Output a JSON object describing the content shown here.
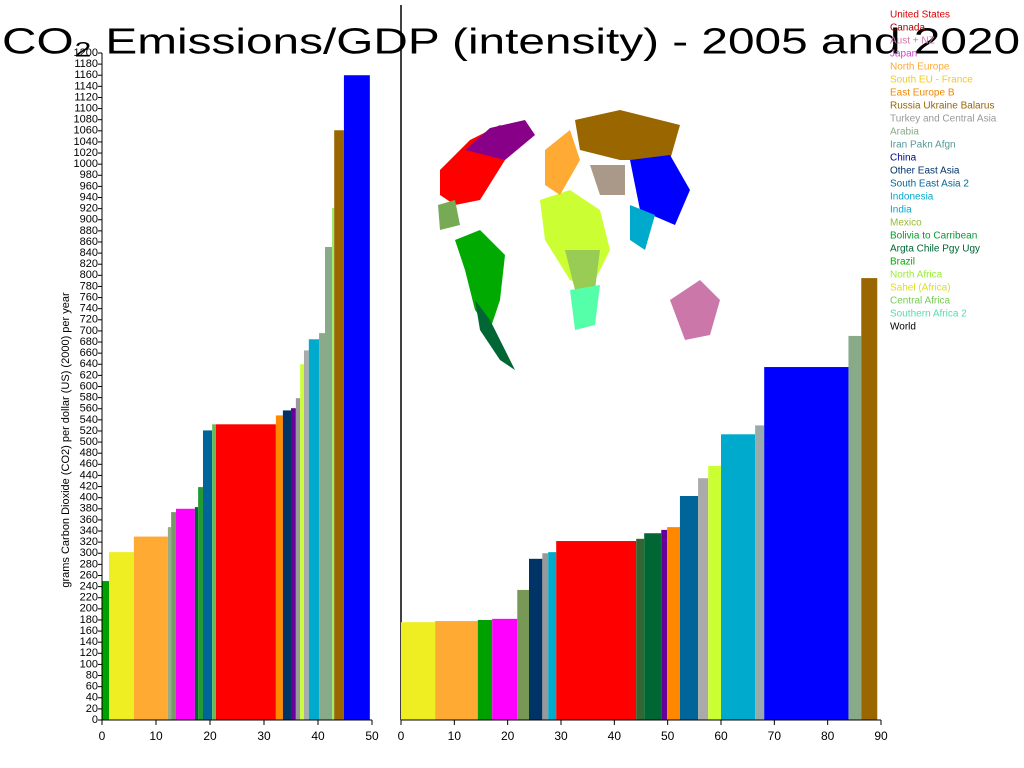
{
  "chart_data": [
    {
      "type": "histogram",
      "title": "CO₂ Emissions/GDP (intensity) - 2005 and 2020",
      "y_label": "grams Carbon Dioxide (CO2) per dollar (US) (2000) per year",
      "bins": [
        0,
        1.3,
        5.9,
        12.2,
        12.8,
        13.7,
        17.2,
        17.8,
        18.7,
        20.4,
        21.1,
        32.2,
        33.5,
        35,
        35.9,
        36.7,
        37.4,
        38.3,
        40.2,
        41.3,
        42.6,
        43,
        44.8,
        49.6
      ],
      "values": [
        250,
        302,
        330,
        347,
        374,
        380,
        383,
        419,
        521,
        532,
        532,
        548,
        557,
        561,
        579,
        640,
        665,
        685,
        696,
        851,
        921,
        1061,
        1160
      ],
      "colors": [
        "#00a000",
        "#eeee22",
        "#ffaa33",
        "#99aa88",
        "#779966",
        "#ff00ff",
        "#006633",
        "#229933",
        "#006699",
        "#66bb55",
        "#ff0000",
        "#ff8800",
        "#003366",
        "#660099",
        "#999999",
        "#ccff33",
        "#aaaaaa",
        "#00aacc",
        "#88aa88",
        "#88aa88",
        "#99ee66",
        "#996600",
        "#0000ff"
      ],
      "xlim": [
        0,
        50
      ],
      "xticks": [
        0,
        10,
        20,
        30,
        40,
        50
      ],
      "ylim": [
        0,
        1200
      ],
      "yticks": [
        0,
        20,
        40,
        60,
        80,
        100,
        120,
        140,
        160,
        180,
        200,
        220,
        240,
        260,
        280,
        300,
        320,
        340,
        360,
        380,
        400,
        420,
        440,
        460,
        480,
        500,
        520,
        540,
        560,
        580,
        600,
        620,
        640,
        660,
        680,
        700,
        720,
        740,
        760,
        780,
        800,
        820,
        840,
        860,
        880,
        900,
        920,
        940,
        960,
        980,
        1000,
        1020,
        1040,
        1060,
        1080,
        1100,
        1120,
        1140,
        1160,
        1180,
        1200
      ]
    },
    {
      "type": "histogram",
      "bins": [
        0,
        6.4,
        14.4,
        17.1,
        21.8,
        24,
        26.5,
        27.6,
        29.1,
        44.1,
        45.6,
        48.8,
        49.9,
        52.3,
        55.7,
        57.6,
        60,
        66.4,
        68.1,
        83.9,
        86.3,
        89.3
      ],
      "values": [
        176,
        178,
        180,
        182,
        234,
        290,
        300,
        302,
        322,
        326,
        336,
        342,
        347,
        403,
        435,
        457,
        514,
        530,
        635,
        691,
        795
      ],
      "colors": [
        "#eeee22",
        "#ffaa33",
        "#00a000",
        "#ff00ff",
        "#779955",
        "#003366",
        "#999999",
        "#00aacc",
        "#ff0000",
        "#336633",
        "#006633",
        "#660099",
        "#ff8800",
        "#006699",
        "#aaaaaa",
        "#ccff33",
        "#00aacc",
        "#99aaaa",
        "#0000ff",
        "#88aa88",
        "#996600"
      ],
      "xlim": [
        0,
        90
      ],
      "xticks": [
        0,
        10,
        20,
        30,
        40,
        50,
        60,
        70,
        80,
        90
      ],
      "ylim": [
        0,
        1200
      ]
    }
  ],
  "legend": [
    {
      "name": "United States",
      "color": "#dd0000"
    },
    {
      "name": "Canada",
      "color": "#aa0000"
    },
    {
      "name": "Aust + NZ",
      "color": "#cc77aa"
    },
    {
      "name": "Japan",
      "color": "#cc44cc"
    },
    {
      "name": "North Europe",
      "color": "#ffaa33"
    },
    {
      "name": "South EU - France",
      "color": "#eecc22"
    },
    {
      "name": "East Europe B",
      "color": "#ee8800"
    },
    {
      "name": "Russia Ukraine Balarus",
      "color": "#996600"
    },
    {
      "name": "Turkey and Central Asia",
      "color": "#999999"
    },
    {
      "name": "Arabia",
      "color": "#88aa88"
    },
    {
      "name": "Iran Pakn Afgn",
      "color": "#559999"
    },
    {
      "name": "China",
      "color": "#000099"
    },
    {
      "name": "Other East Asia",
      "color": "#003366"
    },
    {
      "name": "South East Asia 2",
      "color": "#006699"
    },
    {
      "name": "Indonesia",
      "color": "#00aacc"
    },
    {
      "name": "India",
      "color": "#00aacc"
    },
    {
      "name": "Mexico",
      "color": "#99bb33"
    },
    {
      "name": "Bolivia to Carribean",
      "color": "#009933"
    },
    {
      "name": "Argta Chile Pgy Ugy",
      "color": "#006633"
    },
    {
      "name": "Brazil",
      "color": "#00aa00"
    },
    {
      "name": "North Africa",
      "color": "#99ee33"
    },
    {
      "name": "Sahel (Africa)",
      "color": "#dddd22"
    },
    {
      "name": "Central Africa",
      "color": "#77cc55"
    },
    {
      "name": "Southern Africa 2",
      "color": "#55ddaa"
    },
    {
      "name": "World",
      "color": "#000000"
    }
  ]
}
